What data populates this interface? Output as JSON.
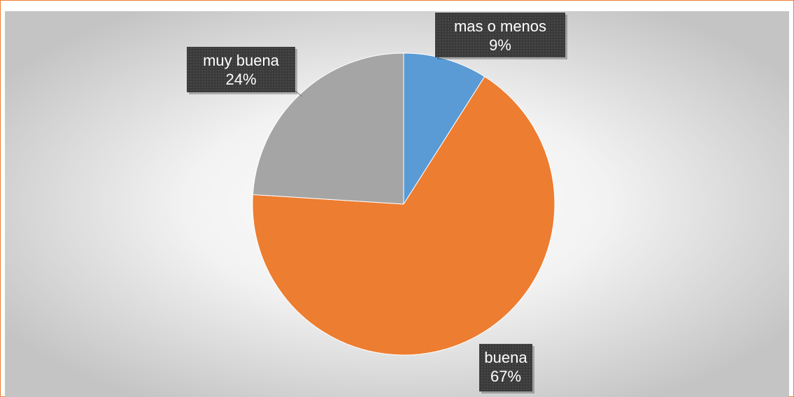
{
  "chart_data": {
    "type": "pie",
    "categories": [
      "mas o menos",
      "buena",
      "muy buena"
    ],
    "values": [
      9,
      67,
      24
    ],
    "value_labels": [
      "9%",
      "67%",
      "24%"
    ],
    "colors": [
      "#5b9bd5",
      "#ed7d31",
      "#a5a5a5"
    ]
  }
}
